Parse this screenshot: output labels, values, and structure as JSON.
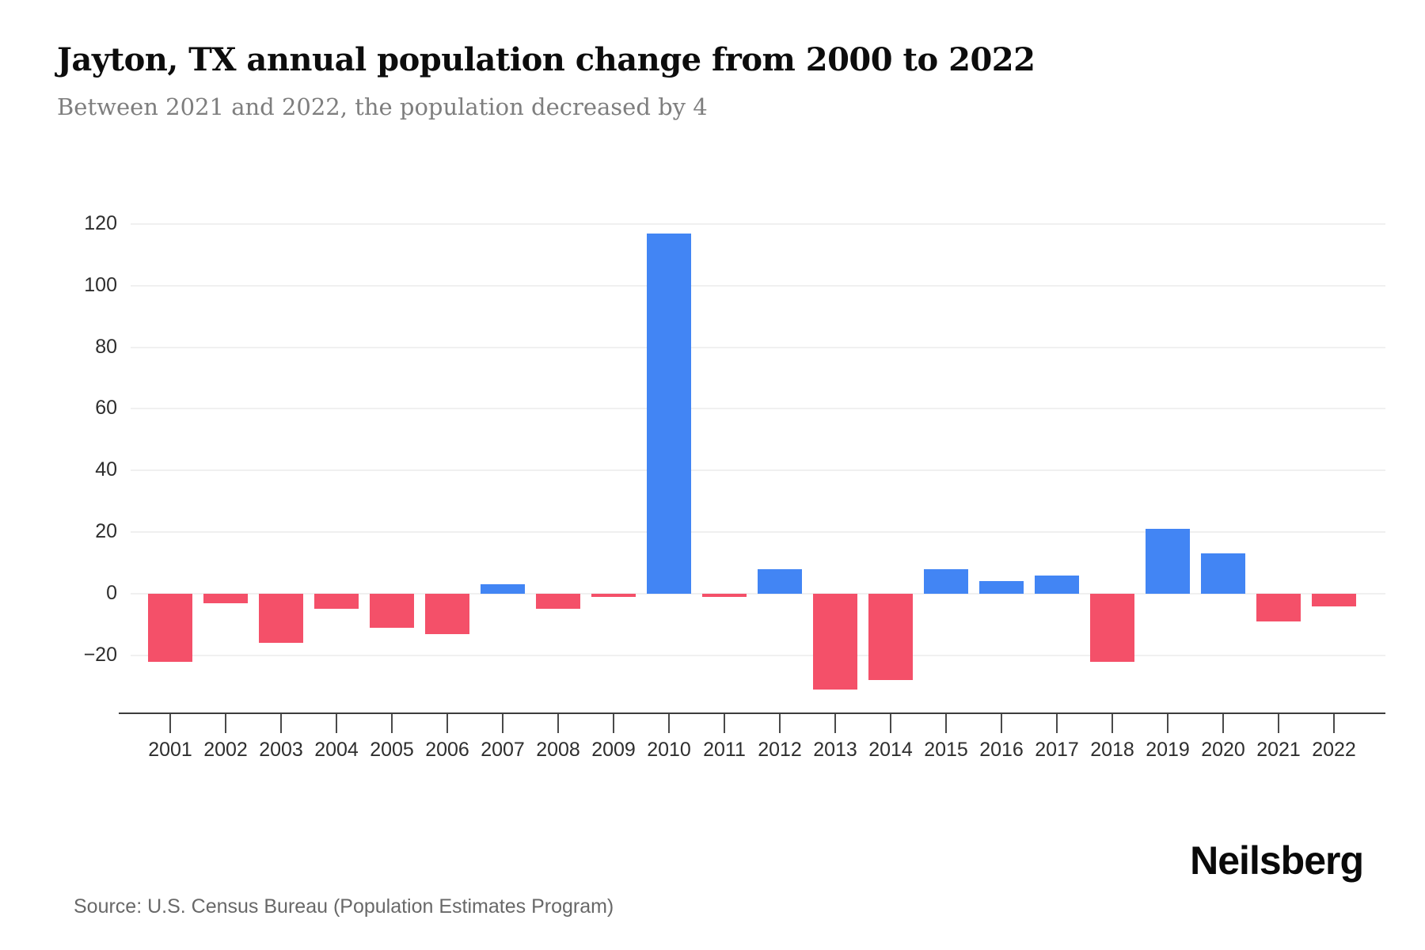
{
  "header": {
    "title": "Jayton, TX annual population change from 2000 to 2022",
    "subtitle": "Between 2021 and 2022, the population decreased by 4"
  },
  "chart_data": {
    "type": "bar",
    "title": "Jayton, TX annual population change from 2000 to 2022",
    "subtitle": "Between 2021 and 2022, the population decreased by 4",
    "categories": [
      "2001",
      "2002",
      "2003",
      "2004",
      "2005",
      "2006",
      "2007",
      "2008",
      "2009",
      "2010",
      "2011",
      "2012",
      "2013",
      "2014",
      "2015",
      "2016",
      "2017",
      "2018",
      "2019",
      "2020",
      "2021",
      "2022"
    ],
    "values": [
      -22,
      -3,
      -16,
      -5,
      -11,
      -13,
      3,
      -5,
      -1,
      117,
      -1,
      8,
      -31,
      -28,
      8,
      4,
      6,
      -22,
      21,
      13,
      -9,
      -4
    ],
    "yticks": [
      120,
      100,
      80,
      60,
      40,
      20,
      0,
      -20
    ],
    "ylim": [
      -39,
      131
    ],
    "xlabel": "",
    "ylabel": "",
    "grid": true,
    "legend": false,
    "positive_color": "#4285F4",
    "negative_color": "#F45069"
  },
  "footer": {
    "source": "Source: U.S. Census Bureau (Population Estimates Program)",
    "brand": "Neilsberg"
  }
}
